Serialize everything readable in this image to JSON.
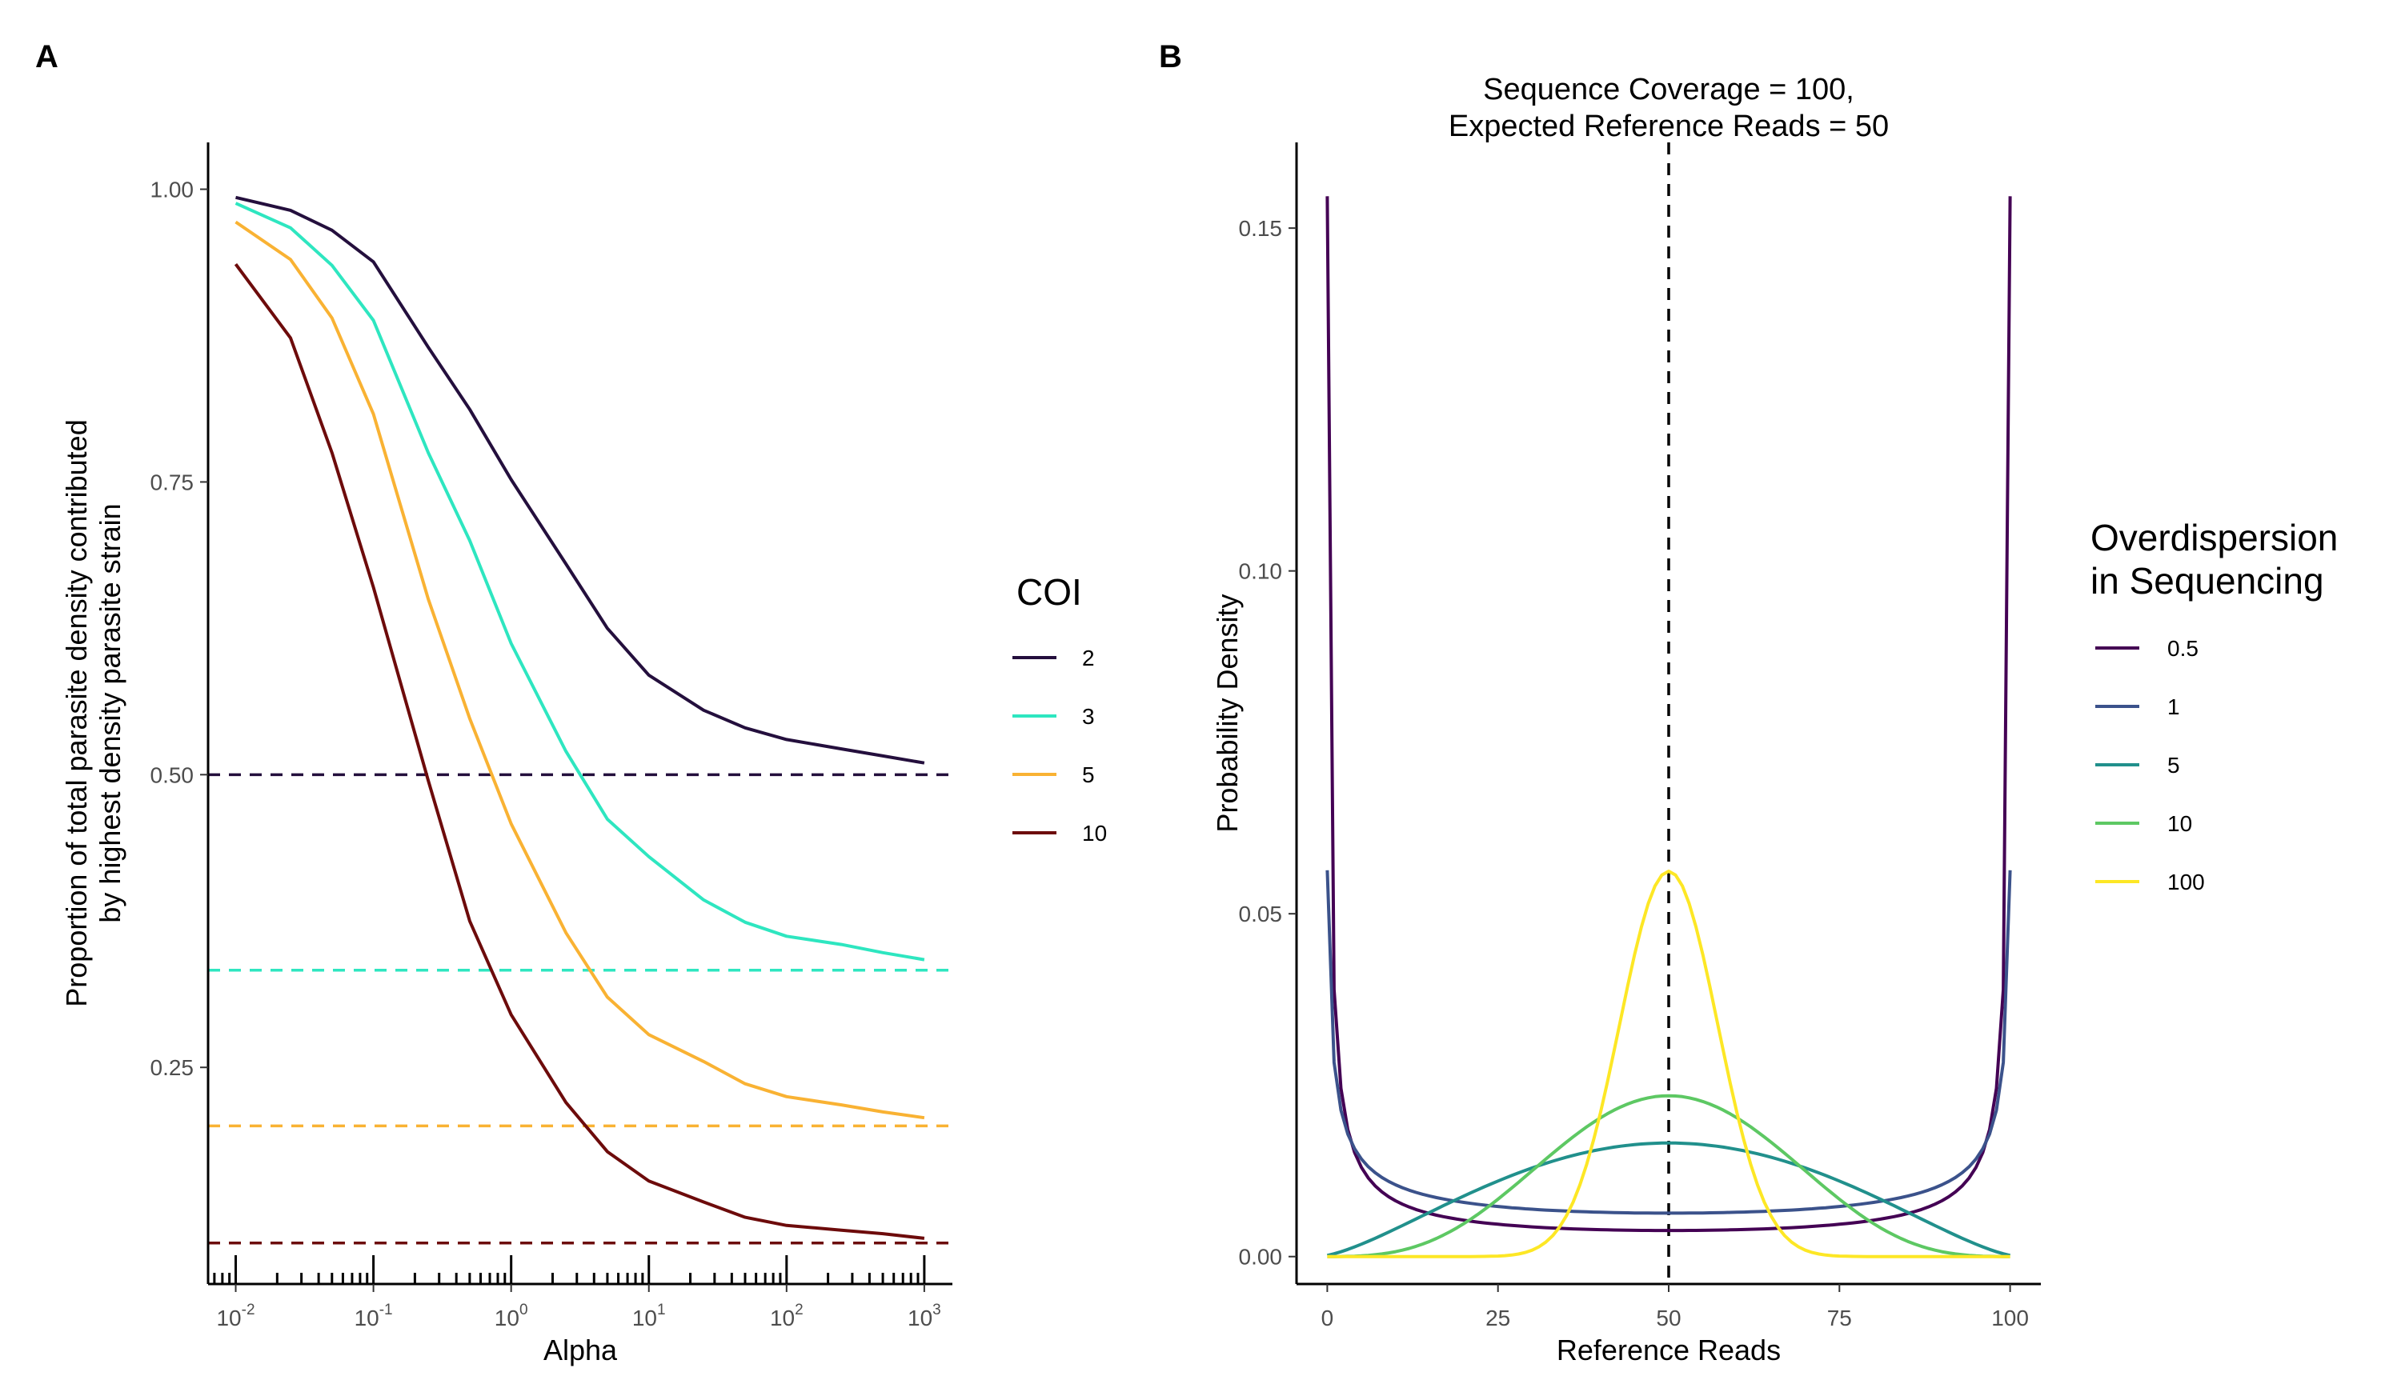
{
  "chart_data": [
    {
      "panel": "A",
      "type": "line",
      "title": "",
      "xlabel": "Alpha",
      "ylabel": "Proportion of total parasite density contributed\nby highest density parasite strain",
      "xscale": "log10",
      "xlim": [
        0.0063,
        1600
      ],
      "ylim": [
        0.065,
        1.04
      ],
      "xticks": [
        0.01,
        0.1,
        1,
        10,
        100,
        1000
      ],
      "xtick_labels": [
        {
          "base": "10",
          "exp": "-2"
        },
        {
          "base": "10",
          "exp": "-1"
        },
        {
          "base": "10",
          "exp": "0"
        },
        {
          "base": "10",
          "exp": "1"
        },
        {
          "base": "10",
          "exp": "2"
        },
        {
          "base": "10",
          "exp": "3"
        }
      ],
      "yticks": [
        0.25,
        0.5,
        0.75,
        1.0
      ],
      "ytick_labels": [
        "0.25",
        "0.50",
        "0.75",
        "1.00"
      ],
      "x": [
        0.01,
        0.025,
        0.05,
        0.1,
        0.25,
        0.5,
        1,
        2.5,
        5,
        10,
        25,
        50,
        100,
        250,
        500,
        1000
      ],
      "series": [
        {
          "name": "2",
          "color": "#240F3D",
          "reference": 0.5,
          "values": [
            0.993,
            0.982,
            0.965,
            0.938,
            0.865,
            0.812,
            0.752,
            0.68,
            0.625,
            0.585,
            0.555,
            0.54,
            0.53,
            0.522,
            0.516,
            0.51
          ]
        },
        {
          "name": "3",
          "color": "#2EE6C0",
          "reference": 0.333,
          "values": [
            0.988,
            0.967,
            0.935,
            0.888,
            0.775,
            0.7,
            0.612,
            0.52,
            0.462,
            0.43,
            0.393,
            0.374,
            0.362,
            0.355,
            0.348,
            0.342
          ]
        },
        {
          "name": "5",
          "color": "#F9B233",
          "reference": 0.2,
          "values": [
            0.972,
            0.94,
            0.89,
            0.808,
            0.65,
            0.548,
            0.458,
            0.365,
            0.31,
            0.278,
            0.255,
            0.236,
            0.225,
            0.218,
            0.212,
            0.207
          ]
        },
        {
          "name": "10",
          "color": "#6D0B0B",
          "reference": 0.1,
          "values": [
            0.936,
            0.873,
            0.775,
            0.66,
            0.495,
            0.375,
            0.295,
            0.22,
            0.178,
            0.153,
            0.135,
            0.122,
            0.115,
            0.111,
            0.108,
            0.104
          ]
        }
      ],
      "legend": {
        "title": "COI",
        "placement": "right"
      },
      "grid": false
    },
    {
      "panel": "B",
      "type": "line",
      "title": "Sequence Coverage = 100,\nExpected Reference Reads = 50",
      "xlabel": "Reference Reads",
      "ylabel": "Probability Density",
      "xlim": [
        -4.5,
        104.5
      ],
      "ylim": [
        -0.004,
        0.1625
      ],
      "xticks": [
        0,
        25,
        50,
        75,
        100
      ],
      "xtick_labels": [
        "0",
        "25",
        "50",
        "75",
        "100"
      ],
      "yticks": [
        0,
        0.05,
        0.1,
        0.15
      ],
      "ytick_labels": [
        "0.00",
        "0.05",
        "0.10",
        "0.15"
      ],
      "coverage": 100,
      "expected_reference_reads": 50,
      "vline": 50,
      "series": [
        {
          "name": "0.5",
          "color": "#440154"
        },
        {
          "name": "1",
          "color": "#3B528B"
        },
        {
          "name": "5",
          "color": "#21908C"
        },
        {
          "name": "10",
          "color": "#5DC863"
        },
        {
          "name": "100",
          "color": "#FDE725"
        }
      ],
      "legend": {
        "title": "Overdispersion\nin Sequencing",
        "placement": "right"
      },
      "grid": false
    }
  ]
}
